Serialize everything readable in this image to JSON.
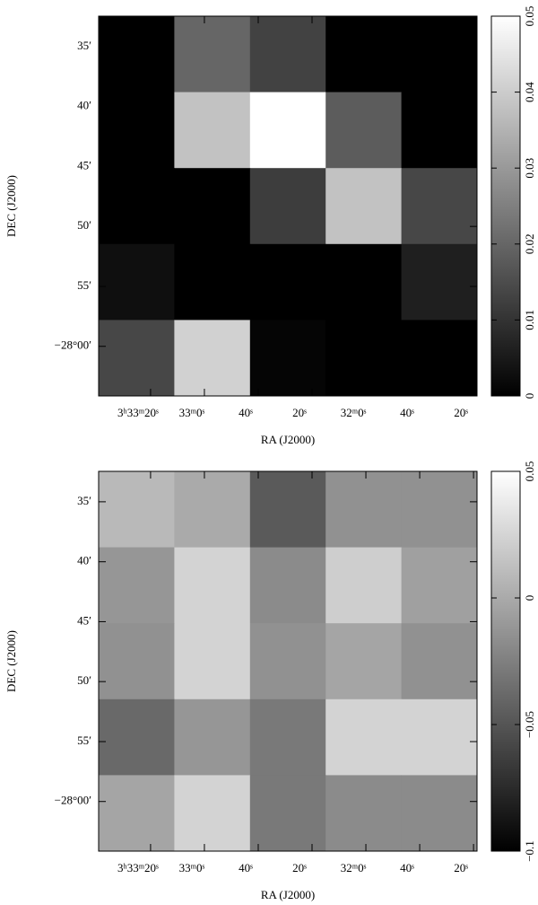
{
  "chart_data": [
    {
      "type": "heatmap",
      "x_label": "RA (J2000)",
      "y_label": "DEC (J2000)",
      "values": [
        [
          0,
          0.02,
          0.013,
          0,
          0
        ],
        [
          0,
          0.038,
          0.05,
          0.018,
          0
        ],
        [
          0,
          0,
          0.012,
          0.038,
          0.014
        ],
        [
          0.003,
          0,
          0,
          0,
          0.006
        ],
        [
          0.014,
          0.041,
          0.001,
          0,
          0
        ]
      ],
      "xlim": [
        12819.3,
        12678.7
      ],
      "xticks": [
        {
          "value": 12800,
          "label": "3ʰ33ᵐ20ˢ"
        },
        {
          "value": 12780,
          "label": "33ᵐ0ˢ"
        },
        {
          "value": 12760,
          "label": "40ˢ"
        },
        {
          "value": 12740,
          "label": "20ˢ"
        },
        {
          "value": 12720,
          "label": "32ᵐ0ˢ"
        },
        {
          "value": 12700,
          "label": "40ˢ"
        },
        {
          "value": 12680,
          "label": "20ˢ"
        }
      ],
      "ylim": [
        -27.541,
        -28.069
      ],
      "yticks": [
        {
          "value": -27.5833,
          "label": "35′"
        },
        {
          "value": -27.6667,
          "label": "40′"
        },
        {
          "value": -27.75,
          "label": "45′"
        },
        {
          "value": -27.8333,
          "label": "50′"
        },
        {
          "value": -27.9167,
          "label": "55′"
        },
        {
          "value": -28.0,
          "label": "−28°00′"
        }
      ],
      "zlim": [
        0,
        0.05
      ],
      "zticks": [
        0,
        0.01,
        0.02,
        0.03,
        0.04,
        0.05
      ]
    },
    {
      "type": "heatmap",
      "x_label": "RA (J2000)",
      "y_label": "DEC (J2000)",
      "values": [
        [
          0.009,
          0.0,
          -0.047,
          -0.015,
          -0.015
        ],
        [
          -0.012,
          0.024,
          -0.018,
          0.021,
          -0.006
        ],
        [
          -0.015,
          0.024,
          -0.015,
          -0.003,
          -0.015
        ],
        [
          -0.038,
          -0.012,
          -0.029,
          0.024,
          0.024
        ],
        [
          -0.003,
          0.024,
          -0.029,
          -0.018,
          -0.018
        ]
      ],
      "xlim": [
        12819.3,
        12678.7
      ],
      "xticks": [
        {
          "value": 12800,
          "label": "3ʰ33ᵐ20ˢ"
        },
        {
          "value": 12780,
          "label": "33ᵐ0ˢ"
        },
        {
          "value": 12760,
          "label": "40ˢ"
        },
        {
          "value": 12740,
          "label": "20ˢ"
        },
        {
          "value": 12720,
          "label": "32ᵐ0ˢ"
        },
        {
          "value": 12700,
          "label": "40ˢ"
        },
        {
          "value": 12680,
          "label": "20ˢ"
        }
      ],
      "ylim": [
        -27.541,
        -28.069
      ],
      "yticks": [
        {
          "value": -27.5833,
          "label": "35′"
        },
        {
          "value": -27.6667,
          "label": "40′"
        },
        {
          "value": -27.75,
          "label": "45′"
        },
        {
          "value": -27.8333,
          "label": "50′"
        },
        {
          "value": -27.9167,
          "label": "55′"
        },
        {
          "value": -28.0,
          "label": "−28°00′"
        }
      ],
      "zlim": [
        -0.1,
        0.05
      ],
      "zticks": [
        {
          "value": -0.1,
          "label": "−0.1"
        },
        {
          "value": -0.05,
          "label": "−0.05"
        },
        0,
        0.05
      ]
    }
  ]
}
